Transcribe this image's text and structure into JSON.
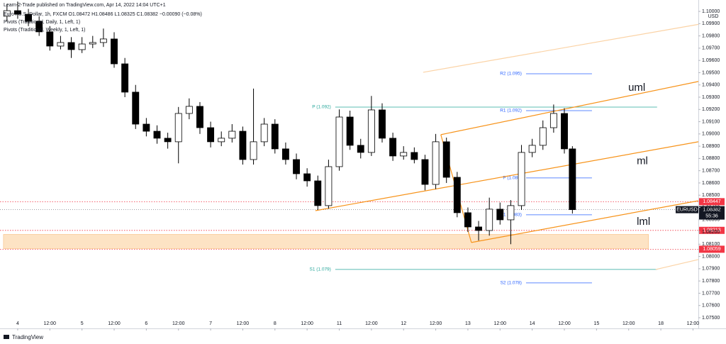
{
  "chart_data": {
    "type": "candlestick",
    "publisher": "Learn-2-Trade published on TradingView.com, Apr 14, 2022 14:04 UTC+1",
    "legend": [
      "Euro / U.S. Dollar, 1h, FXCM  O1.08472 H1.08486 L1.08325 C1.08382 −0.00090 (−0.08%)",
      "Pivots (Traditional, Daily, 1, Left, 1)",
      "Pivots (Traditional, Weekly, 1, Left, 1)"
    ],
    "currency": "USD",
    "brand": "TradingView",
    "ylim": [
      1.07413,
      1.10093
    ],
    "xlim": [
      -6.6,
      254
    ],
    "yticks": [
      {
        "value": 1.075,
        "label": "1.07500"
      },
      {
        "value": 1.076,
        "label": "1.07600"
      },
      {
        "value": 1.077,
        "label": "1.07700"
      },
      {
        "value": 1.078,
        "label": "1.07800"
      },
      {
        "value": 1.079,
        "label": "1.07900"
      },
      {
        "value": 1.08,
        "label": "1.08000"
      },
      {
        "value": 1.081,
        "label": "1.08100"
      },
      {
        "value": 1.082,
        "label": "1.08200"
      },
      {
        "value": 1.083,
        "label": "1.08300"
      },
      {
        "value": 1.084,
        "label": "1.08400"
      },
      {
        "value": 1.085,
        "label": "1.08500"
      },
      {
        "value": 1.086,
        "label": "1.08600"
      },
      {
        "value": 1.087,
        "label": "1.08700"
      },
      {
        "value": 1.088,
        "label": "1.08800"
      },
      {
        "value": 1.089,
        "label": "1.08900"
      },
      {
        "value": 1.09,
        "label": "1.09000"
      },
      {
        "value": 1.091,
        "label": "1.09100"
      },
      {
        "value": 1.092,
        "label": "1.09200"
      },
      {
        "value": 1.093,
        "label": "1.09300"
      },
      {
        "value": 1.094,
        "label": "1.09400"
      },
      {
        "value": 1.095,
        "label": "1.09500"
      },
      {
        "value": 1.096,
        "label": "1.09600"
      },
      {
        "value": 1.097,
        "label": "1.09700"
      },
      {
        "value": 1.098,
        "label": "1.09800"
      },
      {
        "value": 1.099,
        "label": "1.09900"
      },
      {
        "value": 1.1,
        "label": "1.10000"
      }
    ],
    "xticks": [
      {
        "value": 0,
        "label": "4"
      },
      {
        "value": 12,
        "label": "12:00"
      },
      {
        "value": 24,
        "label": "5"
      },
      {
        "value": 36,
        "label": "12:00"
      },
      {
        "value": 48,
        "label": "6"
      },
      {
        "value": 60,
        "label": "12:00"
      },
      {
        "value": 72,
        "label": "7"
      },
      {
        "value": 84,
        "label": "12:00"
      },
      {
        "value": 96,
        "label": "8"
      },
      {
        "value": 108,
        "label": "12:00"
      },
      {
        "value": 120,
        "label": "11"
      },
      {
        "value": 132,
        "label": "12:00"
      },
      {
        "value": 144,
        "label": "12"
      },
      {
        "value": 156,
        "label": "12:00"
      },
      {
        "value": 168,
        "label": "13"
      },
      {
        "value": 180,
        "label": "12:00"
      },
      {
        "value": 192,
        "label": "14"
      },
      {
        "value": 204,
        "label": "12:00"
      },
      {
        "value": 216,
        "label": "15"
      },
      {
        "value": 228,
        "label": "12:00"
      },
      {
        "value": 240,
        "label": "18"
      },
      {
        "value": 252,
        "label": "12:00"
      }
    ],
    "x": [
      -4,
      0,
      4,
      8,
      12,
      16,
      20,
      24,
      28,
      32,
      36,
      40,
      44,
      48,
      52,
      56,
      60,
      64,
      68,
      72,
      76,
      80,
      84,
      88,
      92,
      96,
      100,
      104,
      108,
      112,
      116,
      120,
      124,
      128,
      132,
      136,
      140,
      144,
      148,
      152,
      156,
      160,
      164,
      168,
      172,
      176,
      180,
      184,
      188,
      192,
      196,
      200,
      204,
      207
    ],
    "open": [
      1.0996,
      1.10006,
      1.09977,
      1.09919,
      1.09833,
      1.09717,
      1.09746,
      1.09688,
      1.09734,
      1.09746,
      1.09775,
      1.09572,
      1.09341,
      1.0908,
      1.09022,
      1.08965,
      1.08936,
      1.09167,
      1.09225,
      1.09051,
      1.08936,
      1.08965,
      1.09022,
      1.08791,
      1.08936,
      1.0908,
      1.08878,
      1.08791,
      1.08675,
      1.08617,
      1.08415,
      1.08733,
      1.09138,
      1.08907,
      1.08849,
      1.09196,
      1.08965,
      1.0882,
      1.08849,
      1.08791,
      1.08588,
      1.08936,
      1.08646,
      1.08357,
      1.08241,
      1.08212,
      1.08386,
      1.08299,
      1.08415,
      1.08849,
      1.08907,
      1.09051,
      1.09167,
      1.08878
    ],
    "high": [
      1.1006,
      1.1008,
      1.1002,
      1.0996,
      1.0988,
      1.098,
      1.0979,
      1.0979,
      1.098,
      1.0986,
      1.0983,
      1.0962,
      1.094,
      1.0913,
      1.0907,
      1.0901,
      1.0922,
      1.0929,
      1.0926,
      1.091,
      1.0902,
      1.0908,
      1.0906,
      1.0937,
      1.0913,
      1.0912,
      1.0893,
      1.0884,
      1.0872,
      1.0866,
      1.0879,
      1.092,
      1.0919,
      1.0896,
      1.0931,
      1.0925,
      1.0901,
      1.089,
      1.0889,
      1.0883,
      1.09,
      1.0897,
      1.0869,
      1.084,
      1.0829,
      1.0848,
      1.0844,
      1.0846,
      1.0891,
      1.0896,
      1.0911,
      1.0924,
      1.0921,
      1.089
    ],
    "low": [
      1.0992,
      1.0994,
      1.0988,
      1.098,
      1.0968,
      1.0969,
      1.0962,
      1.0966,
      1.097,
      1.0971,
      1.0954,
      1.093,
      1.0904,
      1.0898,
      1.0892,
      1.0888,
      1.0876,
      1.0912,
      1.09,
      1.0889,
      1.089,
      1.0893,
      1.0875,
      1.0875,
      1.089,
      1.0884,
      1.0875,
      1.0863,
      1.0857,
      1.0838,
      1.0839,
      1.087,
      1.0887,
      1.088,
      1.0882,
      1.0893,
      1.0878,
      1.0879,
      1.0876,
      1.0854,
      1.0855,
      1.086,
      1.0832,
      1.082,
      1.0813,
      1.0817,
      1.0826,
      1.081,
      1.0838,
      1.0881,
      1.0887,
      1.0901,
      1.0884,
      1.0835
    ],
    "close": [
      1.10006,
      1.09977,
      1.09919,
      1.09833,
      1.09717,
      1.09746,
      1.09688,
      1.09734,
      1.09746,
      1.09775,
      1.09572,
      1.09341,
      1.0908,
      1.09022,
      1.08965,
      1.08936,
      1.09167,
      1.09225,
      1.09051,
      1.08936,
      1.08965,
      1.09022,
      1.08791,
      1.08936,
      1.0908,
      1.08878,
      1.08791,
      1.08675,
      1.08617,
      1.08415,
      1.08733,
      1.09138,
      1.08907,
      1.08849,
      1.09196,
      1.08965,
      1.0882,
      1.08849,
      1.08791,
      1.08588,
      1.08936,
      1.08646,
      1.08357,
      1.08241,
      1.08212,
      1.08386,
      1.08299,
      1.08415,
      1.08849,
      1.08907,
      1.09051,
      1.09167,
      1.08878,
      1.08382
    ],
    "up_color": "#ffffff",
    "down_color": "#000000",
    "wick_color": "#000000",
    "zone": {
      "top": 1.0818,
      "bottom": 1.08064,
      "color": "#fde3c4"
    },
    "trendlines": [
      {
        "name": "uml",
        "color": "#f7931a",
        "points": [
          [
            157.9,
            1.08994
          ],
          [
            254,
            1.09428
          ]
        ]
      },
      {
        "name": "ml",
        "color": "#f7931a",
        "points": [
          [
            111.1,
            1.08374
          ],
          [
            254,
            1.08936
          ]
        ]
      },
      {
        "name": "lml",
        "color": "#f7931a",
        "points": [
          [
            169.3,
            1.08114
          ],
          [
            254,
            1.08455
          ]
        ]
      },
      {
        "color": "#f7931a",
        "points": [
          [
            157.9,
            1.08994
          ],
          [
            169.3,
            1.08114
          ]
        ]
      },
      {
        "color": "#fbd3a6",
        "points": [
          [
            151.3,
            1.09503
          ],
          [
            254,
            1.09894
          ]
        ]
      },
      {
        "color": "#fbd3a6",
        "points": [
          [
            238.1,
            1.07894
          ],
          [
            254,
            1.07975
          ]
        ]
      }
    ],
    "pivot_sets": [
      {
        "color": "#26a69a",
        "levels": [
          {
            "label": "P (1.092)",
            "value": 1.09219
          },
          {
            "label": "S1 (1.079)",
            "value": 1.07894
          }
        ]
      },
      {
        "color": "#2962ff",
        "levels": [
          {
            "label": "R2 (1.095)",
            "value": 1.09491
          },
          {
            "label": "R1 (1.092)",
            "value": 1.0919
          },
          {
            "label": "P (1.086)",
            "value": 1.08641
          },
          {
            "label": "S1 (1.083)",
            "value": 1.0834
          },
          {
            "label": "S2 (1.078)",
            "value": 1.07784
          }
        ]
      }
    ],
    "price_lines": [
      {
        "value": 1.08447,
        "label": "1.08447",
        "color": "#f23645"
      },
      {
        "value": 1.08213,
        "label": "1.08213",
        "color": "#f23645"
      },
      {
        "value": 1.08059,
        "label": "1.08059",
        "color": "#f23645"
      }
    ],
    "last": {
      "symbol": "EURUSD",
      "value": 1.08382,
      "label": "1.08382",
      "countdown": "55:36",
      "color": "#131722"
    }
  }
}
